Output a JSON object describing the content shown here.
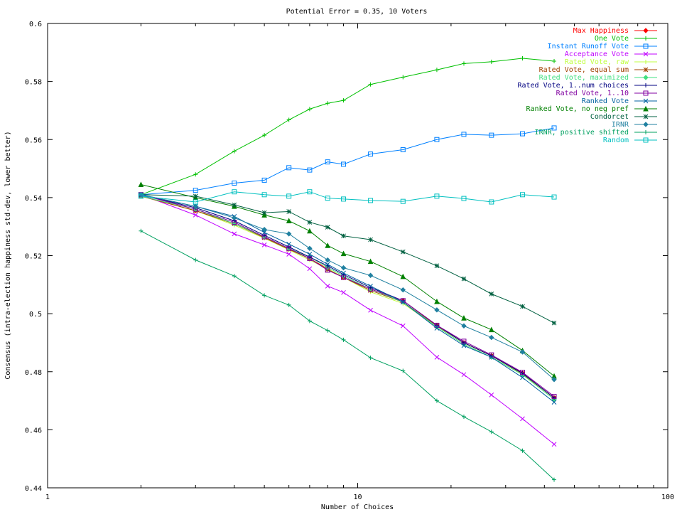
{
  "chart_data": {
    "type": "line",
    "title": "Potential Error = 0.35, 10 Voters",
    "xlabel": "Number of Choices",
    "ylabel": "Consensus (intra-election happiness std-dev, lower better)",
    "xscale": "log",
    "xlim": [
      1,
      100
    ],
    "ylim": [
      0.44,
      0.6
    ],
    "xticks": [
      1,
      10,
      100
    ],
    "xtick_labels": [
      "1",
      "10",
      "100"
    ],
    "yticks": [
      0.44,
      0.46,
      0.48,
      0.5,
      0.52,
      0.54,
      0.56,
      0.58,
      0.6
    ],
    "ytick_labels": [
      "0.44",
      "0.46",
      "0.48",
      "0.5",
      "0.52",
      "0.54",
      "0.56",
      "0.58",
      "0.6"
    ],
    "legend_position": "top-right",
    "grid": false,
    "x": [
      2,
      3,
      4,
      5,
      6,
      7,
      8,
      9,
      11,
      14,
      18,
      22,
      27,
      34,
      43
    ],
    "series": [
      {
        "name": "Max Happiness",
        "color": "#ff0000",
        "marker": "diamond",
        "values": [
          0.5405,
          0.5355,
          0.531,
          0.5265,
          0.5225,
          0.519,
          0.5155,
          0.5125,
          0.5085,
          0.5045,
          0.496,
          0.49,
          0.4855,
          0.4795,
          0.471
        ]
      },
      {
        "name": "One Vote",
        "color": "#00c000",
        "marker": "plus",
        "values": [
          0.541,
          0.548,
          0.556,
          0.5615,
          0.5668,
          0.5705,
          0.5725,
          0.5735,
          0.579,
          0.5815,
          0.584,
          0.5862,
          0.5868,
          0.588,
          0.587
        ]
      },
      {
        "name": "Instant Runoff Vote",
        "color": "#0080ff",
        "marker": "square",
        "values": [
          0.541,
          0.5425,
          0.545,
          0.546,
          0.5503,
          0.5495,
          0.5523,
          0.5515,
          0.555,
          0.5565,
          0.56,
          0.5618,
          0.5615,
          0.562,
          0.564
        ]
      },
      {
        "name": "Acceptance Vote",
        "color": "#c000ff",
        "marker": "x",
        "values": [
          0.541,
          0.534,
          0.5275,
          0.5237,
          0.5205,
          0.5155,
          0.5095,
          0.5073,
          0.5012,
          0.4958,
          0.485,
          0.479,
          0.472,
          0.4638,
          0.455
        ]
      },
      {
        "name": "Rated Vote, raw",
        "color": "#c0ff40",
        "marker": "plus",
        "values": [
          0.5405,
          0.5355,
          0.5305,
          0.526,
          0.522,
          0.5185,
          0.5155,
          0.5125,
          0.5075,
          0.5035,
          0.4955,
          0.4895,
          0.485,
          0.479,
          0.4705
        ]
      },
      {
        "name": "Rated Vote, equal sum",
        "color": "#a04000",
        "marker": "star",
        "values": [
          0.5405,
          0.5355,
          0.531,
          0.5262,
          0.5222,
          0.519,
          0.5152,
          0.5125,
          0.508,
          0.504,
          0.4958,
          0.49,
          0.4855,
          0.4793,
          0.471
        ]
      },
      {
        "name": "Rated Vote, maximized",
        "color": "#40e080",
        "marker": "diamond",
        "values": [
          0.5405,
          0.536,
          0.531,
          0.5265,
          0.5225,
          0.5195,
          0.516,
          0.513,
          0.5085,
          0.504,
          0.4955,
          0.4895,
          0.485,
          0.479,
          0.4705
        ]
      },
      {
        "name": "Rated Vote, 1..num choices",
        "color": "#000080",
        "marker": "plus",
        "values": [
          0.541,
          0.5365,
          0.532,
          0.527,
          0.523,
          0.5195,
          0.5165,
          0.5135,
          0.509,
          0.5045,
          0.496,
          0.49,
          0.4855,
          0.4795,
          0.471
        ]
      },
      {
        "name": "Rated Vote, 1..10",
        "color": "#8000a0",
        "marker": "square",
        "values": [
          0.541,
          0.536,
          0.5315,
          0.5265,
          0.5225,
          0.519,
          0.515,
          0.5125,
          0.5085,
          0.5045,
          0.496,
          0.4905,
          0.4858,
          0.4798,
          0.4715
        ]
      },
      {
        "name": "Ranked Vote",
        "color": "#0060a0",
        "marker": "x",
        "values": [
          0.541,
          0.537,
          0.5335,
          0.528,
          0.524,
          0.5205,
          0.517,
          0.514,
          0.5095,
          0.504,
          0.495,
          0.489,
          0.485,
          0.478,
          0.4695
        ]
      },
      {
        "name": "Ranked Vote, no neg pref",
        "color": "#008000",
        "marker": "triangle",
        "values": [
          0.5445,
          0.54,
          0.537,
          0.534,
          0.532,
          0.5285,
          0.5235,
          0.5207,
          0.518,
          0.5128,
          0.5042,
          0.4985,
          0.4945,
          0.4873,
          0.4785
        ]
      },
      {
        "name": "Condorcet",
        "color": "#006040",
        "marker": "star",
        "values": [
          0.541,
          0.5405,
          0.5375,
          0.5348,
          0.5352,
          0.5315,
          0.5298,
          0.5268,
          0.5255,
          0.5213,
          0.5165,
          0.512,
          0.5068,
          0.5025,
          0.4968
        ]
      },
      {
        "name": "IRNR",
        "color": "#2080a0",
        "marker": "diamond",
        "values": [
          0.541,
          0.537,
          0.533,
          0.529,
          0.5275,
          0.5225,
          0.5185,
          0.5158,
          0.5132,
          0.5082,
          0.5013,
          0.4958,
          0.4918,
          0.4868,
          0.4773
        ]
      },
      {
        "name": "IRNR, positive shifted",
        "color": "#00a060",
        "marker": "plus",
        "values": [
          0.5285,
          0.5185,
          0.513,
          0.5063,
          0.503,
          0.4975,
          0.4942,
          0.491,
          0.4848,
          0.4803,
          0.47,
          0.4645,
          0.4593,
          0.4528,
          0.4428
        ]
      },
      {
        "name": "Random",
        "color": "#00c0c0",
        "marker": "square",
        "values": [
          0.5405,
          0.5385,
          0.542,
          0.541,
          0.5405,
          0.542,
          0.5398,
          0.5395,
          0.539,
          0.5387,
          0.5405,
          0.5397,
          0.5385,
          0.541,
          0.5402
        ]
      }
    ]
  }
}
